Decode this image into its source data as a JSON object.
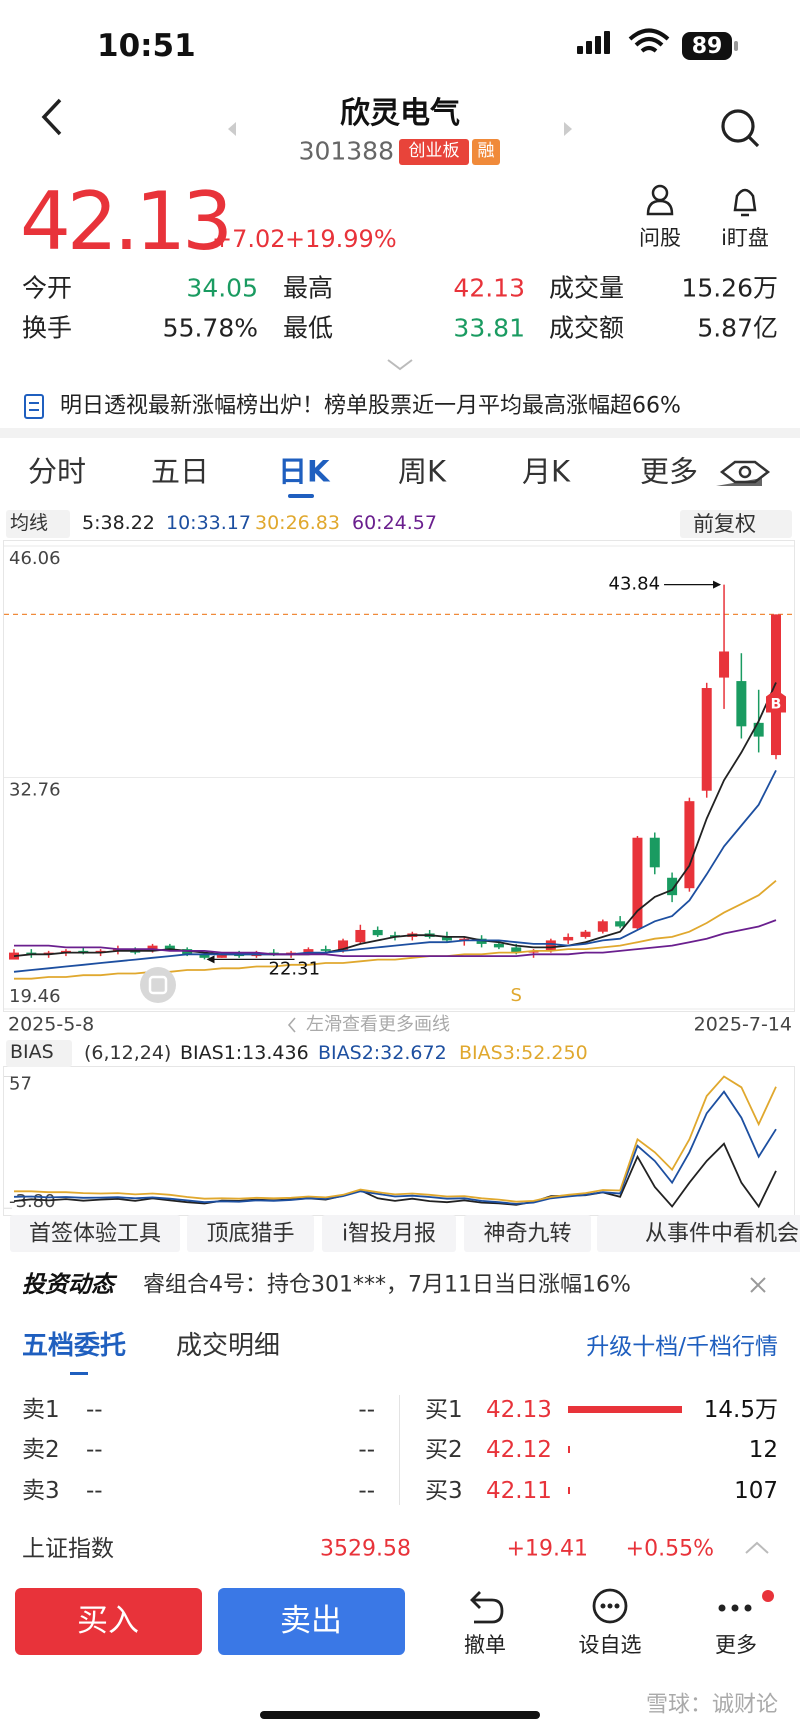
{
  "status_bar": {
    "time": "10:51",
    "battery": "89"
  },
  "header": {
    "title": "欣灵电气",
    "code": "301388",
    "tags": [
      "创业板",
      "融"
    ]
  },
  "quote": {
    "price": "42.13",
    "change": "+7.02",
    "change_pct": "+19.99%"
  },
  "actions": [
    "问股",
    "i盯盘"
  ],
  "stats": [
    [
      "今开",
      "34.05",
      "最高",
      "42.13",
      "成交量",
      "15.26万"
    ],
    [
      "换手",
      "55.78%",
      "最低",
      "33.81",
      "成交额",
      "5.87亿"
    ]
  ],
  "notice": "明日透视最新涨幅榜出炉！榜单股票近一月平均最高涨幅超66%",
  "tabs": {
    "items": [
      "分时",
      "五日",
      "日K",
      "周K",
      "月K",
      "更多"
    ],
    "active": 2
  },
  "chart_data": [
    {
      "type": "candlestick",
      "ma_label": "均线",
      "ma_legend": [
        "5:38.22",
        "10:33.17",
        "30:26.83",
        "60:24.57"
      ],
      "adjust": "前复权",
      "ylim": [
        19.46,
        46.06
      ],
      "yticks": [
        46.06,
        32.76,
        19.46
      ],
      "open": [
        22.3,
        22.7,
        22.6,
        22.7,
        22.8,
        22.7,
        22.8,
        22.9,
        22.8,
        23.1,
        22.9,
        22.6,
        22.4,
        22.6,
        22.5,
        22.7,
        22.6,
        22.7,
        22.9,
        22.8,
        23.3,
        24.0,
        23.7,
        23.6,
        23.8,
        23.6,
        23.4,
        23.5,
        23.2,
        23.0,
        22.7,
        22.8,
        23.4,
        23.6,
        23.9,
        24.5,
        24.1,
        29.3,
        27.0,
        26.4,
        32.0,
        38.5,
        38.3,
        35.9,
        34.05
      ],
      "high": [
        22.9,
        22.9,
        22.8,
        22.9,
        23.0,
        22.9,
        23.1,
        23.0,
        23.2,
        23.2,
        23.0,
        22.7,
        22.7,
        22.8,
        22.8,
        22.9,
        22.8,
        23.0,
        23.1,
        23.5,
        24.3,
        24.2,
        23.9,
        23.9,
        24.0,
        23.9,
        23.6,
        23.7,
        23.4,
        23.2,
        22.9,
        23.5,
        23.8,
        24.0,
        24.6,
        24.8,
        29.4,
        29.6,
        27.3,
        31.6,
        38.2,
        43.84,
        39.9,
        37.8,
        42.13
      ],
      "low": [
        22.4,
        22.4,
        22.4,
        22.5,
        22.6,
        22.5,
        22.6,
        22.6,
        22.7,
        22.8,
        22.5,
        22.31,
        22.4,
        22.4,
        22.4,
        22.5,
        22.4,
        22.6,
        22.7,
        22.7,
        23.2,
        23.6,
        23.4,
        23.4,
        23.5,
        23.3,
        23.1,
        23.0,
        22.9,
        22.6,
        22.4,
        22.7,
        23.2,
        23.5,
        23.8,
        24.1,
        24.0,
        27.2,
        25.6,
        26.2,
        31.6,
        36.7,
        35.0,
        34.2,
        33.81
      ],
      "close": [
        22.7,
        22.6,
        22.7,
        22.8,
        22.7,
        22.8,
        22.9,
        22.7,
        23.1,
        22.9,
        22.6,
        22.4,
        22.6,
        22.5,
        22.7,
        22.6,
        22.7,
        22.9,
        22.8,
        23.4,
        24.0,
        23.7,
        23.6,
        23.8,
        23.6,
        23.4,
        23.5,
        23.2,
        23.0,
        22.7,
        22.8,
        23.4,
        23.6,
        23.9,
        24.5,
        24.2,
        29.3,
        27.6,
        26.0,
        31.4,
        37.9,
        40.0,
        35.7,
        35.11,
        42.13
      ],
      "up_color": "#e8333a",
      "down_color": "#1a9b61",
      "series": [
        {
          "color": "#222222",
          "values": [
            22.5,
            22.6,
            22.6,
            22.7,
            22.7,
            22.7,
            22.8,
            22.8,
            22.8,
            22.9,
            22.8,
            22.7,
            22.6,
            22.6,
            22.6,
            22.6,
            22.6,
            22.6,
            22.7,
            22.9,
            23.2,
            23.4,
            23.6,
            23.7,
            23.7,
            23.6,
            23.6,
            23.4,
            23.3,
            23.1,
            23.0,
            23.0,
            23.1,
            23.3,
            23.6,
            23.9,
            25.1,
            25.9,
            26.3,
            27.7,
            30.4,
            32.6,
            34.2,
            36.0,
            38.22
          ]
        },
        {
          "color": "#1d4fa0",
          "values": [
            21.6,
            21.7,
            21.8,
            21.9,
            22.0,
            22.1,
            22.2,
            22.3,
            22.4,
            22.5,
            22.6,
            22.6,
            22.6,
            22.6,
            22.6,
            22.6,
            22.6,
            22.7,
            22.7,
            22.8,
            22.9,
            23.0,
            23.1,
            23.2,
            23.3,
            23.3,
            23.4,
            23.4,
            23.4,
            23.3,
            23.2,
            23.2,
            23.1,
            23.2,
            23.4,
            23.5,
            24.0,
            24.5,
            24.8,
            25.7,
            27.2,
            28.8,
            30.0,
            31.2,
            33.17
          ]
        },
        {
          "color": "#e0a82e",
          "values": [
            21.2,
            21.2,
            21.3,
            21.3,
            21.4,
            21.4,
            21.5,
            21.5,
            21.6,
            21.6,
            21.7,
            21.7,
            21.8,
            21.8,
            21.9,
            21.9,
            22.0,
            22.0,
            22.1,
            22.1,
            22.2,
            22.3,
            22.3,
            22.4,
            22.5,
            22.5,
            22.6,
            22.6,
            22.7,
            22.7,
            22.8,
            22.8,
            22.9,
            22.9,
            23.0,
            23.1,
            23.3,
            23.5,
            23.6,
            23.9,
            24.4,
            25.0,
            25.5,
            26.0,
            26.83
          ]
        },
        {
          "color": "#6a1f8e",
          "values": [
            23.1,
            23.1,
            23.1,
            23.0,
            23.0,
            23.0,
            22.9,
            22.9,
            22.9,
            22.8,
            22.8,
            22.8,
            22.7,
            22.7,
            22.7,
            22.6,
            22.6,
            22.6,
            22.6,
            22.5,
            22.5,
            22.5,
            22.5,
            22.5,
            22.5,
            22.5,
            22.5,
            22.5,
            22.5,
            22.5,
            22.6,
            22.6,
            22.6,
            22.7,
            22.7,
            22.8,
            22.9,
            23.0,
            23.1,
            23.3,
            23.5,
            23.8,
            24.0,
            24.2,
            24.57
          ]
        }
      ],
      "annotations": {
        "high": 43.84,
        "low": 22.31,
        "signals": [
          "S",
          "B"
        ]
      },
      "x_labels": [
        "2025-5-8",
        "2025-7-14"
      ],
      "hint": "左滑查看更多画线"
    },
    {
      "type": "line",
      "label": "BIAS",
      "params": "(6,12,24)",
      "legend": [
        "BIAS1:13.436",
        "BIAS2:32.672",
        "BIAS3:52.250"
      ],
      "ylim": [
        -6,
        60
      ],
      "yticks": [
        57,
        {
          "value": -3.8,
          "label": "-3.80"
        }
      ],
      "series": [
        {
          "color": "#222222",
          "values": [
            -0.5,
            0.3,
            -0.2,
            0.4,
            -0.3,
            0.2,
            0.5,
            -0.4,
            0.8,
            -0.2,
            -1.0,
            -1.6,
            -0.3,
            -0.4,
            0.2,
            -0.2,
            0.3,
            0.8,
            0.2,
            2.0,
            4.5,
            0.8,
            -0.4,
            0.6,
            -0.5,
            -1.0,
            -0.2,
            -1.2,
            -1.5,
            -2.2,
            -0.8,
            1.8,
            2.0,
            2.2,
            3.5,
            1.5,
            20,
            6,
            -3,
            8,
            18,
            26,
            8,
            -3,
            13.436
          ]
        },
        {
          "color": "#1d4fa0",
          "values": [
            1.5,
            1.6,
            1.2,
            1.4,
            1.0,
            1.1,
            1.3,
            0.8,
            1.2,
            0.6,
            -0.2,
            -1.0,
            -0.6,
            -0.8,
            -0.2,
            -0.4,
            0.0,
            0.8,
            0.5,
            1.8,
            4.0,
            2.8,
            1.6,
            2.0,
            1.4,
            0.6,
            0.8,
            -0.4,
            -1.0,
            -1.8,
            -1.2,
            0.8,
            1.6,
            2.4,
            3.6,
            3.0,
            25,
            18,
            8,
            22,
            40,
            50,
            38,
            20,
            32.672
          ]
        },
        {
          "color": "#e0a82e",
          "values": [
            4.0,
            4.0,
            3.6,
            3.6,
            3.2,
            3.0,
            3.2,
            2.6,
            3.0,
            2.4,
            1.4,
            0.6,
            0.8,
            0.6,
            1.0,
            0.8,
            1.0,
            1.6,
            1.2,
            2.4,
            4.8,
            3.6,
            2.6,
            3.0,
            2.4,
            1.6,
            1.8,
            0.8,
            0.2,
            -0.8,
            -0.4,
            1.4,
            2.4,
            3.2,
            4.6,
            4.4,
            28,
            22,
            14,
            28,
            48,
            57,
            52,
            35,
            52.25
          ]
        }
      ]
    }
  ],
  "tools": [
    "首签体验工具",
    "顶底猎手",
    "i智投月报",
    "神奇九转",
    "从事件中看机会"
  ],
  "news": {
    "label": "投资动态",
    "text": "睿组合4号：持仓301***，7月11日当日涨幅16%"
  },
  "orderbook": {
    "tabs": [
      "五档委托",
      "成交明细"
    ],
    "link": "升级十档/千档行情",
    "sell": [
      [
        "卖1",
        "--",
        "--"
      ],
      [
        "卖2",
        "--",
        "--"
      ],
      [
        "卖3",
        "--",
        "--"
      ]
    ],
    "buy": [
      {
        "level": "买1",
        "price": "42.13",
        "volume": 145000,
        "volume_label": "14.5万"
      },
      {
        "level": "买2",
        "price": "42.12",
        "volume": 12
      },
      {
        "level": "买3",
        "price": "42.11",
        "volume": 107
      }
    ]
  },
  "index": {
    "name": "上证指数",
    "value": "3529.58",
    "change": "+19.41",
    "pct": "+0.55%"
  },
  "bottom": {
    "buy": "买入",
    "sell": "卖出",
    "actions": [
      "撤单",
      "设自选",
      "更多"
    ]
  },
  "watermark": "雪球：诚财论"
}
